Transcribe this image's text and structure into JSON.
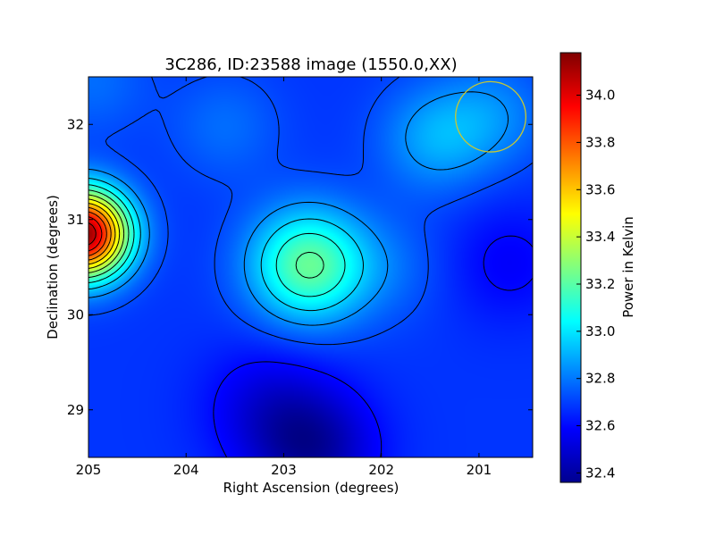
{
  "chart_data": {
    "type": "heatmap",
    "title": "3C286, ID:23588 image (1550.0,XX)",
    "xlabel": "Right Ascension (degrees)",
    "ylabel": "Declination (degrees)",
    "xlim": [
      205.0,
      200.45
    ],
    "ylim": [
      28.5,
      32.5
    ],
    "x_ticks": [
      205,
      204,
      203,
      202,
      201
    ],
    "y_ticks": [
      29,
      30,
      31,
      32
    ],
    "colorbar": {
      "label": "Power in Kelvin",
      "range": [
        32.36,
        34.18
      ],
      "ticks": [
        32.4,
        32.6,
        32.8,
        33.0,
        33.2,
        33.4,
        33.6,
        33.8,
        34.0
      ],
      "colormap": "jet"
    },
    "background_level": 32.68,
    "features": [
      {
        "kind": "peak",
        "ra": 205.05,
        "dec": 30.85,
        "value": 34.15
      },
      {
        "kind": "peak",
        "ra": 202.75,
        "dec": 30.52,
        "value": 33.22
      },
      {
        "kind": "bump",
        "ra": 201.45,
        "dec": 31.85,
        "value": 32.88
      },
      {
        "kind": "bump",
        "ra": 200.85,
        "dec": 32.1,
        "value": 32.82
      },
      {
        "kind": "bump",
        "ra": 203.6,
        "dec": 31.98,
        "value": 32.78
      },
      {
        "kind": "bump",
        "ra": 204.95,
        "dec": 32.45,
        "value": 32.78
      },
      {
        "kind": "bump",
        "ra": 201.9,
        "dec": 30.5,
        "value": 32.76
      },
      {
        "kind": "trough",
        "ra": 202.7,
        "dec": 28.6,
        "value": 32.42
      },
      {
        "kind": "trough",
        "ra": 203.2,
        "dec": 29.05,
        "value": 32.55
      },
      {
        "kind": "trough",
        "ra": 200.7,
        "dec": 30.55,
        "value": 32.58
      }
    ],
    "contours": true,
    "marker": {
      "shape": "circle",
      "ra": 200.88,
      "dec": 32.08,
      "radius_deg": 0.36,
      "color": "#c8c832"
    },
    "grid": false
  }
}
